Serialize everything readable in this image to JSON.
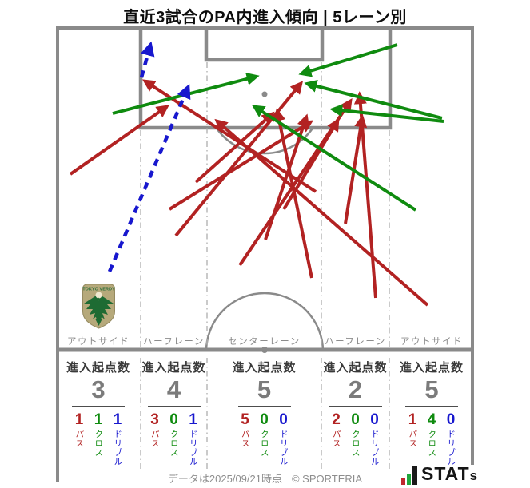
{
  "title": "直近3試合のPA内進入傾向 | 5レーン別",
  "table": {
    "header": "進入起点数"
  },
  "metric_labels": {
    "pass": "パス",
    "cross": "クロス",
    "dribble": "ドリブル"
  },
  "crest_text": "TOKYO VERDY",
  "footer": {
    "note": "データは2025/09/21時点",
    "copyright": "© SPORTERIA",
    "logo_main": "STAT",
    "logo_s": "s"
  },
  "colors": {
    "pass": "#B22222",
    "cross": "#0F8B0F",
    "dribble": "#1717CE",
    "pitch_line": "#8A8A8A",
    "lane_line": "#B4B4B4",
    "label_gray": "#8C8C8C"
  },
  "chart_data": {
    "type": "pitch-arrow-map",
    "description": "Penalty-area entries in last 3 matches, split by 5 vertical lanes; arrows drawn from origin to entry point. Red=pass, green=cross, blue dashed=dribble.",
    "pitch_bounds": {
      "x": [
        70,
        593
      ],
      "y": [
        33,
        440
      ]
    },
    "lane_boundaries_x": [
      70,
      176,
      259,
      402,
      487,
      593
    ],
    "lanes": [
      {
        "label": "アウトサイド",
        "origins": 3,
        "pass": 1,
        "cross": 1,
        "dribble": 1
      },
      {
        "label": "ハーフレーン",
        "origins": 4,
        "pass": 3,
        "cross": 0,
        "dribble": 1
      },
      {
        "label": "センターレーン",
        "origins": 5,
        "pass": 5,
        "cross": 0,
        "dribble": 0
      },
      {
        "label": "ハーフレーン",
        "origins": 2,
        "pass": 2,
        "cross": 0,
        "dribble": 0
      },
      {
        "label": "アウトサイド",
        "origins": 5,
        "pass": 1,
        "cross": 4,
        "dribble": 0
      }
    ],
    "arrows": [
      {
        "kind": "pass",
        "from": [
          88,
          218
        ],
        "to": [
          208,
          134
        ]
      },
      {
        "kind": "pass",
        "from": [
          220,
          295
        ],
        "to": [
          376,
          105
        ]
      },
      {
        "kind": "pass",
        "from": [
          245,
          228
        ],
        "to": [
          340,
          143
        ]
      },
      {
        "kind": "pass",
        "from": [
          212,
          262
        ],
        "to": [
          388,
          153
        ]
      },
      {
        "kind": "pass",
        "from": [
          395,
          240
        ],
        "to": [
          182,
          102
        ]
      },
      {
        "kind": "pass",
        "from": [
          390,
          348
        ],
        "to": [
          347,
          140
        ]
      },
      {
        "kind": "pass",
        "from": [
          332,
          300
        ],
        "to": [
          383,
          147
        ]
      },
      {
        "kind": "pass",
        "from": [
          355,
          262
        ],
        "to": [
          422,
          152
        ]
      },
      {
        "kind": "pass",
        "from": [
          300,
          332
        ],
        "to": [
          438,
          127
        ]
      },
      {
        "kind": "pass",
        "from": [
          470,
          373
        ],
        "to": [
          450,
          119
        ]
      },
      {
        "kind": "pass",
        "from": [
          432,
          280
        ],
        "to": [
          453,
          148
        ]
      },
      {
        "kind": "pass",
        "from": [
          535,
          382
        ],
        "to": [
          272,
          152
        ]
      },
      {
        "kind": "cross",
        "from": [
          141,
          142
        ],
        "to": [
          320,
          96
        ]
      },
      {
        "kind": "cross",
        "from": [
          497,
          56
        ],
        "to": [
          378,
          92
        ]
      },
      {
        "kind": "cross",
        "from": [
          553,
          148
        ],
        "to": [
          385,
          105
        ]
      },
      {
        "kind": "cross",
        "from": [
          555,
          152
        ],
        "to": [
          417,
          137
        ]
      },
      {
        "kind": "cross",
        "from": [
          520,
          263
        ],
        "to": [
          319,
          134
        ]
      },
      {
        "kind": "dribble",
        "from": [
          137,
          340
        ],
        "to": [
          235,
          110
        ]
      },
      {
        "kind": "dribble",
        "from": [
          177,
          97
        ],
        "to": [
          188,
          57
        ]
      }
    ]
  }
}
